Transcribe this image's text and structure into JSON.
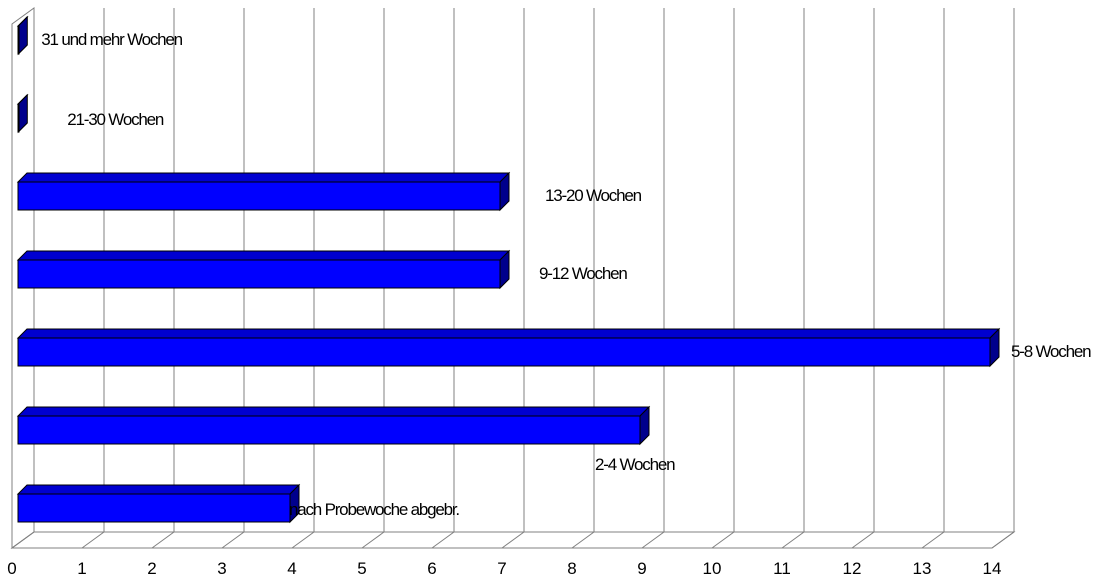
{
  "chart_data": {
    "type": "bar",
    "orientation": "horizontal",
    "style": "3d",
    "categories": [
      "nach Probewoche abgebr.",
      "2-4 Wochen",
      "5-8 Wochen",
      "9-12 Wochen",
      "13-20 Wochen",
      "21-30 Wochen",
      "31 und mehr Wochen"
    ],
    "values": [
      4,
      9,
      14,
      7,
      7,
      0,
      0
    ],
    "xlim": [
      0,
      14
    ],
    "x_ticks": [
      "0",
      "1",
      "2",
      "3",
      "4",
      "5",
      "6",
      "7",
      "8",
      "9",
      "10",
      "11",
      "12",
      "13",
      "14"
    ],
    "title": "",
    "xlabel": "",
    "ylabel": "",
    "grid": "vertical",
    "legend": "none",
    "colors": {
      "bar_front": "#0000ff",
      "bar_top": "#0000d0",
      "bar_side": "#00008c",
      "grid": "#808080",
      "background": "#ffffff"
    }
  }
}
